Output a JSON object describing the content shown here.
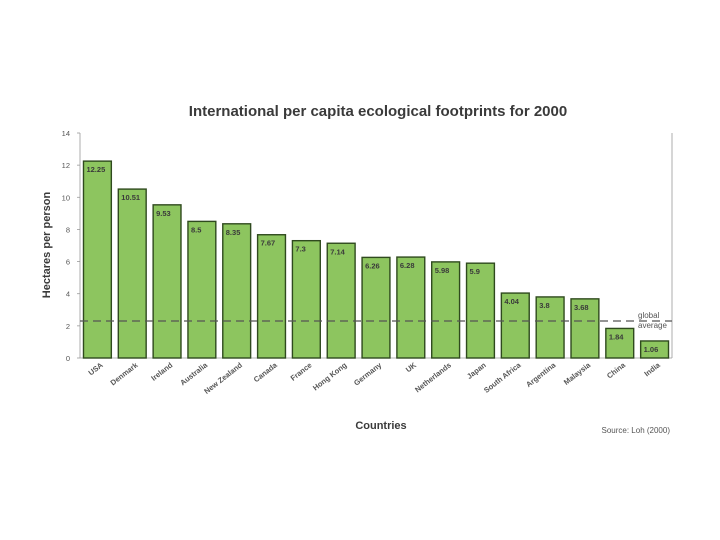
{
  "chart_data": {
    "type": "bar",
    "title": "International per capita ecological footprints for 2000",
    "xlabel": "Countries",
    "ylabel": "Hectares per person",
    "ylim": [
      0,
      14
    ],
    "yticks": [
      "0",
      "2",
      "4",
      "6",
      "8",
      "10",
      "12",
      "14"
    ],
    "categories": [
      "USA",
      "Denmark",
      "Ireland",
      "Australia",
      "New Zealand",
      "Canada",
      "France",
      "Hong Kong",
      "Germany",
      "UK",
      "Netherlands",
      "Japan",
      "South Africa",
      "Argentina",
      "Malaysia",
      "China",
      "India"
    ],
    "values": [
      12.25,
      10.51,
      9.53,
      8.5,
      8.35,
      7.67,
      7.3,
      7.14,
      6.26,
      6.28,
      5.98,
      5.9,
      4.04,
      3.8,
      3.68,
      1.84,
      1.06
    ],
    "value_labels": [
      "12.25",
      "10.51",
      "9.53",
      "8.5",
      "8.35",
      "7.67",
      "7.3",
      "7.14",
      "6.26",
      "6.28",
      "5.98",
      "5.9",
      "4.04",
      "3.8",
      "3.68",
      "1.84",
      "1.06"
    ],
    "reference_line": {
      "value": 2.3,
      "label_line1": "global",
      "label_line2": "average"
    },
    "source": "Source: Loh (2000)",
    "bar_color": "#8dc55f",
    "bar_edge_color": "#2f4a1e"
  }
}
